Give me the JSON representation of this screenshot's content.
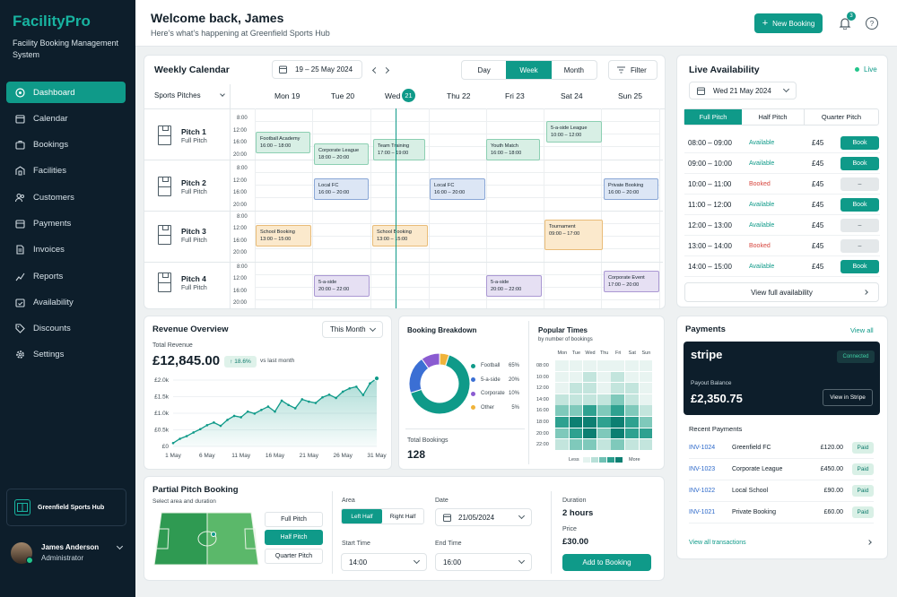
{
  "app": {
    "brand": "FacilityPro",
    "subtitle": "Facility Booking Management System"
  },
  "sidebar": {
    "items": [
      {
        "label": "Dashboard",
        "icon": "grid-icon",
        "active": true
      },
      {
        "label": "Calendar",
        "icon": "calendar-icon"
      },
      {
        "label": "Bookings",
        "icon": "briefcase-icon"
      },
      {
        "label": "Facilities",
        "icon": "building-icon"
      },
      {
        "label": "Customers",
        "icon": "users-icon"
      },
      {
        "label": "Payments",
        "icon": "wallet-icon"
      },
      {
        "label": "Invoices",
        "icon": "document-icon"
      },
      {
        "label": "Reports",
        "icon": "chart-icon"
      },
      {
        "label": "Availability",
        "icon": "calendar-check-icon"
      },
      {
        "label": "Discounts",
        "icon": "tag-icon"
      },
      {
        "label": "Settings",
        "icon": "gear-icon"
      }
    ],
    "hub": "Greenfield Sports Hub",
    "user": {
      "name": "James Anderson",
      "role": "Administrator"
    }
  },
  "header": {
    "welcome": "Welcome back, James",
    "subtitle": "Here’s what’s happening at Greenfield Sports Hub",
    "new_booking": "New Booking",
    "notifications": "3",
    "help": "?"
  },
  "calendar": {
    "title": "Weekly Calendar",
    "range": "19 – 25 May 2024",
    "views": [
      "Day",
      "Week",
      "Month"
    ],
    "active_view": "Week",
    "filter": "Filter",
    "resource": "Sports Pitches",
    "days": [
      {
        "label": "Mon 19"
      },
      {
        "label": "Tue 20"
      },
      {
        "label": "Wed",
        "badge": "21"
      },
      {
        "label": "Thu 22"
      },
      {
        "label": "Fri 23"
      },
      {
        "label": "Sat 24"
      },
      {
        "label": "Sun 25"
      }
    ],
    "times": [
      "8:00",
      "12:00",
      "16:00",
      "20:00"
    ],
    "pitches": [
      {
        "name": "Pitch 1",
        "type": "Full Pitch"
      },
      {
        "name": "Pitch 2",
        "type": "Full Pitch"
      },
      {
        "name": "Pitch 3",
        "type": "Full Pitch"
      },
      {
        "name": "Pitch 4",
        "type": "Full Pitch"
      }
    ],
    "events": [
      {
        "name": "Football Academy",
        "time": "16:00 – 18:00"
      },
      {
        "name": "Corporate League",
        "time": "18:00 – 20:00"
      },
      {
        "name": "Team Training",
        "time": "17:00 – 19:00"
      },
      {
        "name": "Youth Match",
        "time": "16:00 – 18:00"
      },
      {
        "name": "5-a-side League",
        "time": "10:00 – 12:00"
      },
      {
        "name": "Local FC",
        "time": "16:00 – 20:00"
      },
      {
        "name": "Local FC",
        "time": "16:00 – 20:00"
      },
      {
        "name": "Private Booking",
        "time": "16:00 – 20:00"
      },
      {
        "name": "School Booking",
        "time": "13:00 – 15:00"
      },
      {
        "name": "School Booking",
        "time": "13:00 – 15:00"
      },
      {
        "name": "Tournament",
        "time": "09:00 – 17:00"
      },
      {
        "name": "5-a-side",
        "time": "20:00 – 22:00"
      },
      {
        "name": "5-a-side",
        "time": "20:00 – 22:00"
      },
      {
        "name": "Corporate Event",
        "time": "17:00 – 20:00"
      }
    ]
  },
  "availability": {
    "title": "Live Availability",
    "live": "Live",
    "date": "Wed 21 May 2024",
    "tabs": [
      "Full Pitch",
      "Half Pitch",
      "Quarter Pitch"
    ],
    "slots": [
      {
        "time": "08:00 – 09:00",
        "status": "Available",
        "price": "£45",
        "action": "Book"
      },
      {
        "time": "09:00 – 10:00",
        "status": "Available",
        "price": "£45",
        "action": "Book"
      },
      {
        "time": "10:00 – 11:00",
        "status": "Booked",
        "price": "£45",
        "action": "–"
      },
      {
        "time": "11:00 – 12:00",
        "status": "Available",
        "price": "£45",
        "action": "Book"
      },
      {
        "time": "12:00 – 13:00",
        "status": "Available",
        "price": "£45",
        "action": "–"
      },
      {
        "time": "13:00 – 14:00",
        "status": "Booked",
        "price": "£45",
        "action": "–"
      },
      {
        "time": "14:00 – 15:00",
        "status": "Available",
        "price": "£45",
        "action": "Book"
      }
    ],
    "view_full": "View full availability"
  },
  "revenue": {
    "title": "Revenue Overview",
    "period": "This Month",
    "total_label": "Total Revenue",
    "total": "£12,845.00",
    "change": "↑ 18.6%",
    "change_note": "vs last month"
  },
  "chart_data": [
    {
      "type": "area",
      "x": [
        "1 May",
        "2 May",
        "3 May",
        "4 May",
        "5 May",
        "6 May",
        "7 May",
        "8 May",
        "9 May",
        "10 May",
        "11 May",
        "12 May",
        "13 May",
        "14 May",
        "15 May",
        "16 May",
        "17 May",
        "18 May",
        "19 May",
        "20 May",
        "21 May",
        "22 May",
        "23 May",
        "24 May",
        "25 May",
        "26 May",
        "27 May",
        "28 May",
        "29 May",
        "30 May",
        "31 May"
      ],
      "values": [
        100,
        230,
        310,
        420,
        520,
        640,
        720,
        620,
        800,
        920,
        880,
        1050,
        990,
        1100,
        1200,
        1050,
        1380,
        1250,
        1150,
        1420,
        1350,
        1310,
        1480,
        1560,
        1460,
        1650,
        1750,
        1800,
        1550,
        1900,
        2050
      ],
      "x_ticks": [
        "1 May",
        "6 May",
        "11 May",
        "16 May",
        "21 May",
        "26 May",
        "31 May"
      ],
      "y_ticks": [
        "£0",
        "£0.5k",
        "£1.0k",
        "£1.5k",
        "£2.0k"
      ],
      "ylim": [
        0,
        2000
      ]
    },
    {
      "type": "pie",
      "title": "Booking Breakdown",
      "categories": [
        "Football",
        "5-a-side",
        "Corporate",
        "Other"
      ],
      "values": [
        65,
        20,
        10,
        5
      ],
      "labels": [
        "65%",
        "20%",
        "10%",
        "5%"
      ],
      "colors": [
        "#0f9a89",
        "#3b6fd4",
        "#8a5bd1",
        "#f0b33a"
      ],
      "total_label": "Total Bookings",
      "total": "128"
    },
    {
      "type": "heatmap",
      "title": "Popular Times",
      "subtitle": "by number of bookings",
      "columns": [
        "Mon",
        "Tue",
        "Wed",
        "Thu",
        "Fri",
        "Sat",
        "Sun"
      ],
      "rows": [
        "08:00",
        "10:00",
        "12:00",
        "14:00",
        "16:00",
        "18:00",
        "20:00",
        "22:00"
      ],
      "values": [
        [
          0,
          0,
          0,
          0,
          0,
          0,
          0
        ],
        [
          0,
          0,
          1,
          0,
          1,
          0,
          0
        ],
        [
          0,
          1,
          1,
          0,
          1,
          1,
          0
        ],
        [
          1,
          1,
          1,
          1,
          2,
          1,
          0
        ],
        [
          2,
          2,
          3,
          2,
          3,
          2,
          1
        ],
        [
          3,
          4,
          4,
          3,
          4,
          3,
          2
        ],
        [
          2,
          3,
          4,
          2,
          4,
          3,
          3
        ],
        [
          1,
          2,
          2,
          1,
          2,
          1,
          1
        ]
      ],
      "legend_low": "Less",
      "legend_high": "More"
    }
  ],
  "payments": {
    "title": "Payments",
    "view_all": "View all",
    "stripe": {
      "logo": "stripe",
      "status": "Connected",
      "balance_label": "Payout Balance",
      "balance": "£2,350.75",
      "view": "View in Stripe"
    },
    "recent_label": "Recent Payments",
    "rows": [
      {
        "id": "INV-1024",
        "name": "Greenfield FC",
        "amount": "£120.00",
        "status": "Paid"
      },
      {
        "id": "INV-1023",
        "name": "Corporate League",
        "amount": "£450.00",
        "status": "Paid"
      },
      {
        "id": "INV-1022",
        "name": "Local School",
        "amount": "£90.00",
        "status": "Paid"
      },
      {
        "id": "INV-1021",
        "name": "Private Booking",
        "amount": "£60.00",
        "status": "Paid"
      }
    ],
    "view_all_tx": "View all transactions"
  },
  "partial": {
    "title": "Partial Pitch Booking",
    "subtitle": "Select area and duration",
    "sizes": [
      "Full Pitch",
      "Half Pitch",
      "Quarter Pitch"
    ],
    "area_label": "Area",
    "areas": [
      "Left Half",
      "Right Half"
    ],
    "date_label": "Date",
    "date": "21/05/2024",
    "start_label": "Start Time",
    "start": "14:00",
    "end_label": "End Time",
    "end": "16:00",
    "duration_label": "Duration",
    "duration": "2 hours",
    "price_label": "Price",
    "price": "£30.00",
    "add": "Add to Booking"
  },
  "colors": {
    "accent": "#0f9a89",
    "sidebar": "#0d1e2b",
    "booked": "#d6453d"
  }
}
